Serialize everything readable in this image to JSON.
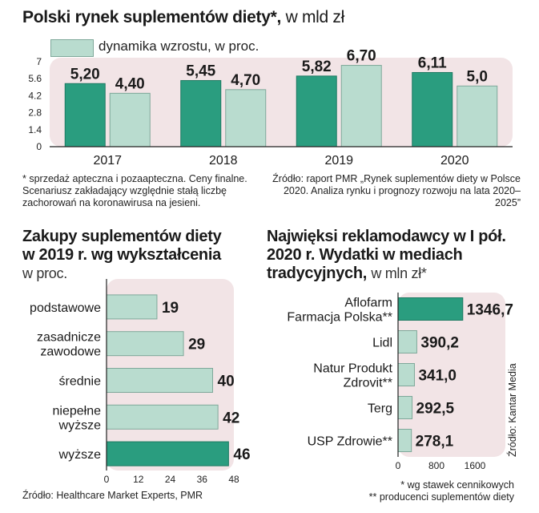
{
  "colors": {
    "dark": "#2a9d7f",
    "light": "#b9dccf",
    "panel": "#f2e4e6",
    "border": "#7fa89a"
  },
  "title1": {
    "bold": "Polski rynek suplementów diety*,",
    "light": "w mld zł"
  },
  "legend1": {
    "label": "dynamika wzrostu, w proc."
  },
  "note1": "* sprzedaż apteczna i pozaapteczna. Ceny finalne. Scenariusz zakładający względnie stałą liczbę zachorowań na koronawirusa na jesieni.",
  "source1": "Źródło: raport PMR „Rynek suplementów diety w Polsce 2020. Analiza rynku i prognozy rozwoju na lata 2020–2025”",
  "title2": {
    "line1": "Zakupy suplementów diety",
    "line2": "w 2019 r. wg wykształcenia",
    "sub": "w proc."
  },
  "source2": "Źródło: Healthcare Market Experts, PMR",
  "title3": {
    "line1": "Najwięksi reklamodawcy w I pół.",
    "line2": "2020 r. Wydatki w mediach",
    "line3": "tradycyjnych,",
    "sub": "w mln zł*"
  },
  "source3_side": "Źródło: Kantar Media",
  "note3a": "* wg stawek cennikowych",
  "note3b": "** producenci suplementów diety",
  "chart_data": [
    {
      "type": "bar",
      "categories": [
        "2017",
        "2018",
        "2019",
        "2020"
      ],
      "series": [
        {
          "values": [
            5.2,
            5.45,
            5.82,
            6.11
          ],
          "labels": [
            "5,20",
            "5,45",
            "5,82",
            "6,11"
          ]
        },
        {
          "name": "dynamika wzrostu, w proc.",
          "values": [
            4.4,
            4.7,
            6.7,
            5.0
          ],
          "labels": [
            "4,40",
            "4,70",
            "6,70",
            "5,0"
          ]
        }
      ],
      "yticks": [
        "0",
        "1.4",
        "2.8",
        "4.2",
        "5.6",
        "7"
      ],
      "ylim": [
        0,
        7
      ]
    },
    {
      "type": "bar",
      "orientation": "horizontal",
      "categories": [
        [
          "podstawowe"
        ],
        [
          "zasadnicze",
          "zawodowe"
        ],
        [
          "średnie"
        ],
        [
          "niepełne",
          "wyższe"
        ],
        [
          "wyższe"
        ]
      ],
      "values": [
        19,
        29,
        40,
        42,
        46
      ],
      "highlight": [
        false,
        false,
        false,
        false,
        true
      ],
      "xticks": [
        "0",
        "12",
        "24",
        "36",
        "48"
      ],
      "xlim": [
        0,
        48
      ]
    },
    {
      "type": "bar",
      "orientation": "horizontal",
      "categories": [
        [
          "Aflofarm",
          "Farmacja Polska**"
        ],
        [
          "Lidl"
        ],
        [
          "Natur Produkt",
          "Zdrovit**"
        ],
        [
          "Terg"
        ],
        [
          "USP Zdrowie**"
        ]
      ],
      "values": [
        1346.7,
        390.2,
        341.0,
        292.5,
        278.1
      ],
      "labels": [
        "1346,7",
        "390,2",
        "341,0",
        "292,5",
        "278,1"
      ],
      "highlight": [
        true,
        false,
        false,
        false,
        false
      ],
      "xticks": [
        "0",
        "800",
        "1600"
      ],
      "xlim": [
        0,
        1600
      ]
    }
  ]
}
